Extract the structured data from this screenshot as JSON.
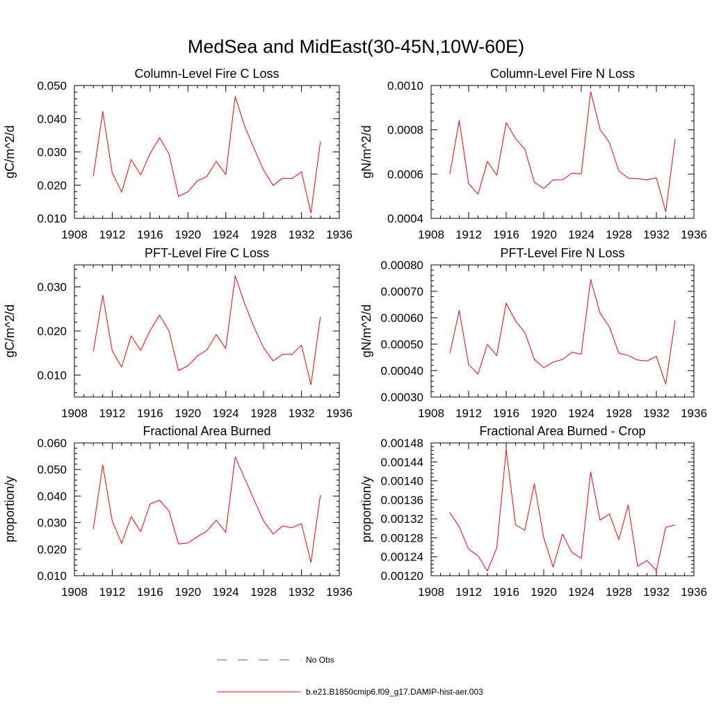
{
  "figure": {
    "title": "MedSea and MidEast(30-45N,10W-60E)"
  },
  "legend": [
    {
      "label": "No Obs",
      "color": "#5555cc",
      "style": "dashed"
    },
    {
      "label": "b.e21.B1850cmip6.f09_g17.DAMIP-hist-aer.003",
      "color": "#ff0000",
      "style": "solid"
    }
  ],
  "chart_data": [
    {
      "type": "line",
      "title": "Column-Level Fire C Loss",
      "ylabel": "gC/m^2/d",
      "xlim": [
        1908,
        1936
      ],
      "ylim": [
        0.01,
        0.05
      ],
      "xticks": [
        1908,
        1912,
        1916,
        1920,
        1924,
        1928,
        1932,
        1936
      ],
      "yticks": [
        0.01,
        0.02,
        0.03,
        0.04,
        0.05
      ],
      "ytick_labels": [
        "0.010",
        "0.020",
        "0.030",
        "0.040",
        "0.050"
      ],
      "x": [
        1910,
        1911,
        1912,
        1913,
        1914,
        1915,
        1916,
        1917,
        1918,
        1919,
        1920,
        1921,
        1922,
        1923,
        1924,
        1925,
        1926,
        1927,
        1928,
        1929,
        1930,
        1931,
        1932,
        1933,
        1934
      ],
      "series": [
        {
          "color": "#ff0000",
          "values": [
            0.0227,
            0.0422,
            0.0237,
            0.0179,
            0.0277,
            0.0231,
            0.0295,
            0.0343,
            0.0294,
            0.0166,
            0.018,
            0.0213,
            0.0226,
            0.0272,
            0.0232,
            0.0467,
            0.0377,
            0.031,
            0.0245,
            0.0199,
            0.0221,
            0.022,
            0.024,
            0.0116,
            0.0331
          ]
        }
      ]
    },
    {
      "type": "line",
      "title": "Column-Level Fire N Loss",
      "ylabel": "gN/m^2/d",
      "xlim": [
        1908,
        1936
      ],
      "ylim": [
        0.0004,
        0.001
      ],
      "xticks": [
        1908,
        1912,
        1916,
        1920,
        1924,
        1928,
        1932,
        1936
      ],
      "yticks": [
        0.0004,
        0.0006,
        0.0008,
        0.001
      ],
      "ytick_labels": [
        "0.0004",
        "0.0006",
        "0.0008",
        "0.0010"
      ],
      "x": [
        1910,
        1911,
        1912,
        1913,
        1914,
        1915,
        1916,
        1917,
        1918,
        1919,
        1920,
        1921,
        1922,
        1923,
        1924,
        1925,
        1926,
        1927,
        1928,
        1929,
        1930,
        1931,
        1932,
        1933,
        1934
      ],
      "series": [
        {
          "color": "#ff0000",
          "values": [
            0.000601,
            0.000843,
            0.000557,
            0.000509,
            0.000657,
            0.000595,
            0.000832,
            0.00076,
            0.000712,
            0.000563,
            0.000535,
            0.000573,
            0.000574,
            0.000604,
            0.0006,
            0.000973,
            0.000802,
            0.000742,
            0.000614,
            0.000582,
            0.000579,
            0.000574,
            0.000583,
            0.00043,
            0.000758
          ]
        }
      ]
    },
    {
      "type": "line",
      "title": "PFT-Level Fire C Loss",
      "ylabel": "gC/m^2/d",
      "xlim": [
        1908,
        1936
      ],
      "ylim": [
        0.005,
        0.035
      ],
      "xticks": [
        1908,
        1912,
        1916,
        1920,
        1924,
        1928,
        1932,
        1936
      ],
      "yticks": [
        0.01,
        0.02,
        0.03
      ],
      "ytick_labels": [
        "0.010",
        "0.020",
        "0.030"
      ],
      "x": [
        1910,
        1911,
        1912,
        1913,
        1914,
        1915,
        1916,
        1917,
        1918,
        1919,
        1920,
        1921,
        1922,
        1923,
        1924,
        1925,
        1926,
        1927,
        1928,
        1929,
        1930,
        1931,
        1932,
        1933,
        1934
      ],
      "series": [
        {
          "color": "#ff0000",
          "values": [
            0.0154,
            0.0281,
            0.0155,
            0.0118,
            0.0189,
            0.0156,
            0.0201,
            0.0236,
            0.02,
            0.011,
            0.0121,
            0.0143,
            0.0157,
            0.0192,
            0.016,
            0.0325,
            0.0262,
            0.0208,
            0.0162,
            0.0132,
            0.0147,
            0.0147,
            0.0168,
            0.0078,
            0.0232
          ]
        }
      ]
    },
    {
      "type": "line",
      "title": "PFT-Level Fire N Loss",
      "ylabel": "gN/m^2/d",
      "xlim": [
        1908,
        1936
      ],
      "ylim": [
        0.0003,
        0.0008
      ],
      "xticks": [
        1908,
        1912,
        1916,
        1920,
        1924,
        1928,
        1932,
        1936
      ],
      "yticks": [
        0.0003,
        0.0004,
        0.0005,
        0.0006,
        0.0007,
        0.0008
      ],
      "ytick_labels": [
        "0.00030",
        "0.00040",
        "0.00050",
        "0.00060",
        "0.00070",
        "0.00080"
      ],
      "x": [
        1910,
        1911,
        1912,
        1913,
        1914,
        1915,
        1916,
        1917,
        1918,
        1919,
        1920,
        1921,
        1922,
        1923,
        1924,
        1925,
        1926,
        1927,
        1928,
        1929,
        1930,
        1931,
        1932,
        1933,
        1934
      ],
      "series": [
        {
          "color": "#ff0000",
          "values": [
            0.000465,
            0.000627,
            0.000423,
            0.000387,
            0.000499,
            0.000457,
            0.000655,
            0.000588,
            0.000544,
            0.000443,
            0.000411,
            0.000432,
            0.000442,
            0.000469,
            0.000463,
            0.000745,
            0.000618,
            0.000565,
            0.000466,
            0.000457,
            0.00044,
            0.000436,
            0.000454,
            0.000349,
            0.00059
          ]
        }
      ]
    },
    {
      "type": "line",
      "title": "Fractional Area Burned",
      "ylabel": "proportion/y",
      "xlim": [
        1908,
        1936
      ],
      "ylim": [
        0.01,
        0.06
      ],
      "xticks": [
        1908,
        1912,
        1916,
        1920,
        1924,
        1928,
        1932,
        1936
      ],
      "yticks": [
        0.01,
        0.02,
        0.03,
        0.04,
        0.05,
        0.06
      ],
      "ytick_labels": [
        "0.010",
        "0.020",
        "0.030",
        "0.040",
        "0.050",
        "0.060"
      ],
      "x": [
        1910,
        1911,
        1912,
        1913,
        1914,
        1915,
        1916,
        1917,
        1918,
        1919,
        1920,
        1921,
        1922,
        1923,
        1924,
        1925,
        1926,
        1927,
        1928,
        1929,
        1930,
        1931,
        1932,
        1933,
        1934
      ],
      "series": [
        {
          "color": "#ff0000",
          "values": [
            0.0275,
            0.0517,
            0.0306,
            0.0222,
            0.0322,
            0.0266,
            0.037,
            0.0384,
            0.0344,
            0.022,
            0.0223,
            0.0247,
            0.0268,
            0.0309,
            0.0263,
            0.0547,
            0.0466,
            0.0385,
            0.0306,
            0.0257,
            0.0287,
            0.0281,
            0.0296,
            0.015,
            0.0404
          ]
        }
      ]
    },
    {
      "type": "line",
      "title": "Fractional Area Burned - Crop",
      "ylabel": "proportion/y",
      "xlim": [
        1908,
        1936
      ],
      "ylim": [
        0.0012,
        0.00148
      ],
      "xticks": [
        1908,
        1912,
        1916,
        1920,
        1924,
        1928,
        1932,
        1936
      ],
      "yticks": [
        0.0012,
        0.00124,
        0.00128,
        0.00132,
        0.00136,
        0.0014,
        0.00144,
        0.00148
      ],
      "ytick_labels": [
        "0.00120",
        "0.00124",
        "0.00128",
        "0.00132",
        "0.00136",
        "0.00140",
        "0.00144",
        "0.00148"
      ],
      "x": [
        1910,
        1911,
        1912,
        1913,
        1914,
        1915,
        1916,
        1917,
        1918,
        1919,
        1920,
        1921,
        1922,
        1923,
        1924,
        1925,
        1926,
        1927,
        1928,
        1929,
        1930,
        1931,
        1932,
        1933,
        1934
      ],
      "series": [
        {
          "color": "#ff0000",
          "values": [
            0.001333,
            0.001303,
            0.001256,
            0.001242,
            0.00121,
            0.001259,
            0.001466,
            0.001307,
            0.001296,
            0.001394,
            0.00128,
            0.001218,
            0.001288,
            0.001249,
            0.001237,
            0.001419,
            0.001317,
            0.00133,
            0.001276,
            0.001349,
            0.00122,
            0.001232,
            0.001211,
            0.001302,
            0.001307
          ]
        }
      ]
    }
  ]
}
